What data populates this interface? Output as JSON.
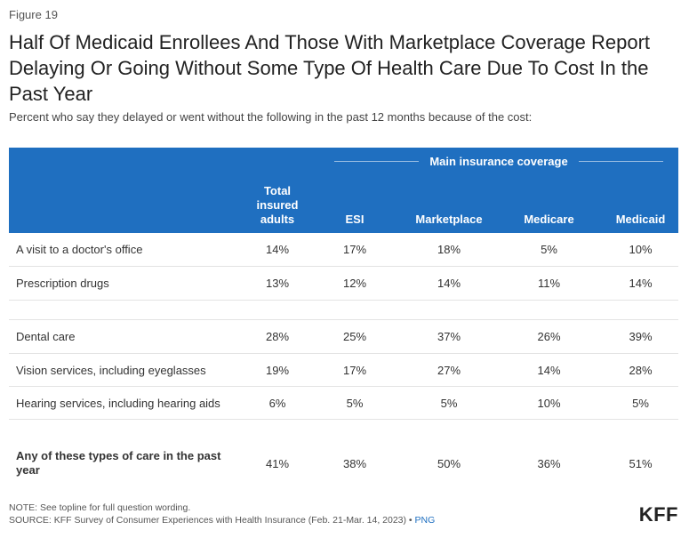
{
  "figure_label": "Figure 19",
  "title": "Half Of Medicaid Enrollees And Those With Marketplace Coverage Report Delaying Or Going Without Some Type Of Health Care Due To Cost In the Past Year",
  "subtitle": "Percent who say they delayed or went without the following in the past 12 months because of the cost:",
  "chart_data": {
    "type": "table",
    "group_header": "Main insurance coverage",
    "columns": [
      "Total insured adults",
      "ESI",
      "Marketplace",
      "Medicare",
      "Medicaid"
    ],
    "rows": [
      {
        "label": "A visit to a doctor's office",
        "values": [
          "14%",
          "17%",
          "18%",
          "5%",
          "10%"
        ]
      },
      {
        "label": "Prescription drugs",
        "values": [
          "13%",
          "12%",
          "14%",
          "11%",
          "14%"
        ]
      },
      {
        "label": "Dental care",
        "values": [
          "28%",
          "25%",
          "37%",
          "26%",
          "39%"
        ]
      },
      {
        "label": "Vision services, including eyeglasses",
        "values": [
          "19%",
          "17%",
          "27%",
          "14%",
          "28%"
        ]
      },
      {
        "label": "Hearing services, including hearing aids",
        "values": [
          "6%",
          "5%",
          "5%",
          "10%",
          "5%"
        ]
      },
      {
        "label": "Any of these types of care in the past year",
        "values": [
          "41%",
          "38%",
          "50%",
          "36%",
          "51%"
        ]
      }
    ]
  },
  "footer": {
    "note": "NOTE: See topline for full question wording.",
    "source": "SOURCE: KFF Survey of Consumer Experiences with Health Insurance (Feb. 21-Mar. 14, 2023) •",
    "png_label": "PNG",
    "logo": "KFF"
  },
  "colors": {
    "header_bg": "#1f6fc0",
    "link": "#1f6fc0"
  }
}
